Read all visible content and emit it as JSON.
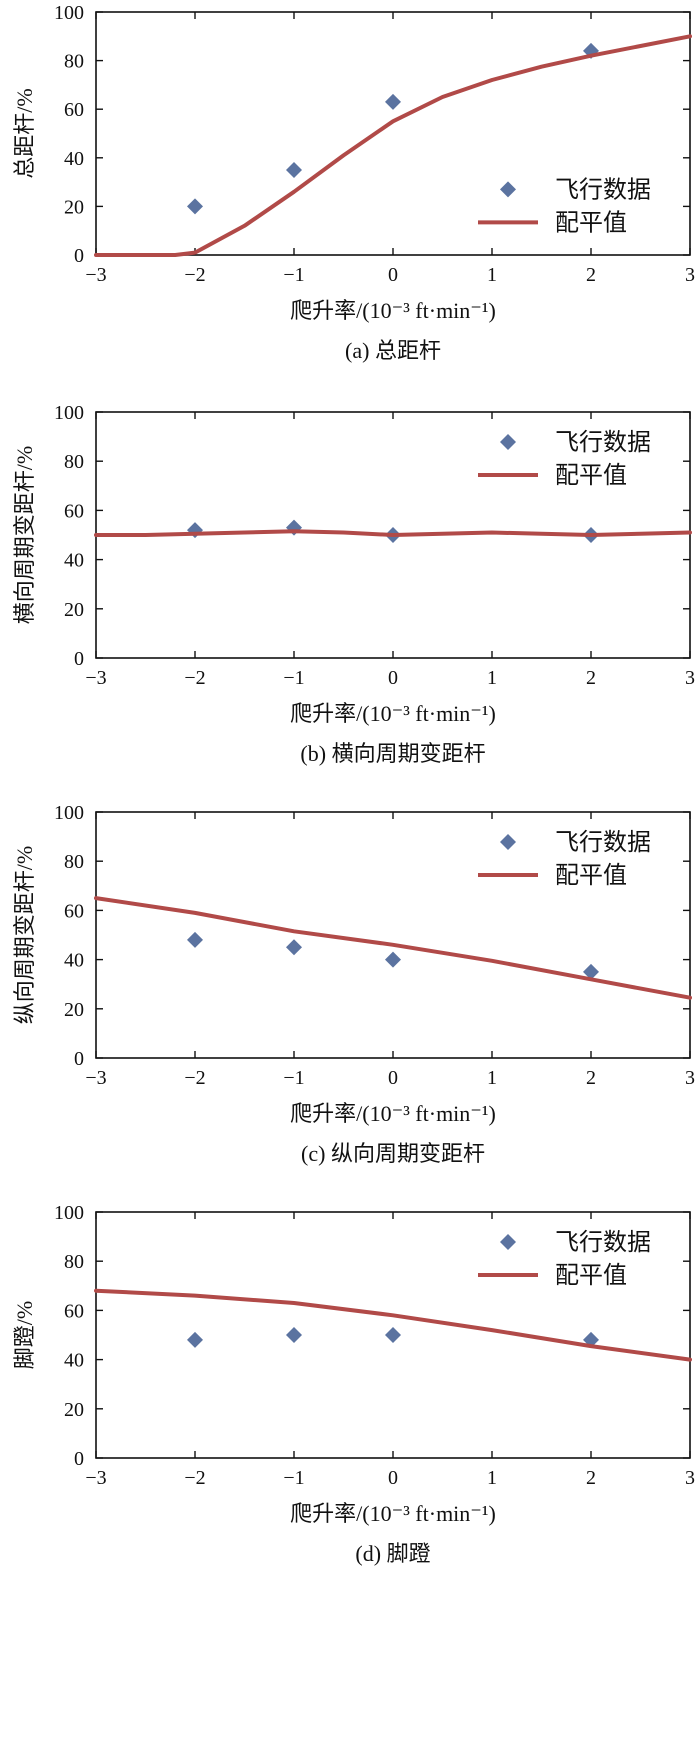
{
  "colors": {
    "flight": "#5b73a0",
    "fit": "#b14a48"
  },
  "chart_data": [
    {
      "type": "scatter",
      "caption": "(a) 总距杆",
      "xlabel": "爬升率/(10⁻³ ft·min⁻¹)",
      "ylabel": "总距杆/%",
      "xlim": [
        -3,
        3
      ],
      "ylim": [
        0,
        100
      ],
      "xticks": [
        "−3",
        "−2",
        "−1",
        "0",
        "1",
        "2",
        "3"
      ],
      "yticks": [
        "0",
        "20",
        "40",
        "60",
        "80",
        "100"
      ],
      "legend_position": "middle-right",
      "series": [
        {
          "name": "飞行数据",
          "kind": "scatter",
          "x": [
            -2,
            -1,
            0,
            2
          ],
          "y": [
            20,
            35,
            63,
            84
          ]
        },
        {
          "name": "配平值",
          "kind": "line",
          "x": [
            -3,
            -2.2,
            -2,
            -1.5,
            -1,
            -0.5,
            0,
            0.5,
            1,
            1.5,
            2,
            2.5,
            3
          ],
          "y": [
            0,
            0,
            1,
            12,
            26,
            41,
            55,
            65,
            72,
            77.5,
            82,
            86,
            90
          ]
        }
      ]
    },
    {
      "type": "scatter",
      "caption": "(b) 横向周期变距杆",
      "xlabel": "爬升率/(10⁻³ ft·min⁻¹)",
      "ylabel": "横向周期变距杆/%",
      "xlim": [
        -3,
        3
      ],
      "ylim": [
        0,
        100
      ],
      "xticks": [
        "−3",
        "−2",
        "−1",
        "0",
        "1",
        "2",
        "3"
      ],
      "yticks": [
        "0",
        "20",
        "40",
        "60",
        "80",
        "100"
      ],
      "legend_position": "top-right",
      "series": [
        {
          "name": "飞行数据",
          "kind": "scatter",
          "x": [
            -2,
            -1,
            0,
            2
          ],
          "y": [
            52,
            53,
            50,
            50
          ]
        },
        {
          "name": "配平值",
          "kind": "line",
          "x": [
            -3,
            -2.5,
            -2,
            -1.5,
            -1,
            -0.5,
            0,
            0.5,
            1,
            1.5,
            2,
            2.5,
            3
          ],
          "y": [
            50,
            50,
            50.5,
            51,
            51.5,
            51,
            50,
            50.5,
            51,
            50.5,
            50,
            50.5,
            51
          ]
        }
      ]
    },
    {
      "type": "scatter",
      "caption": "(c) 纵向周期变距杆",
      "xlabel": "爬升率/(10⁻³ ft·min⁻¹)",
      "ylabel": "纵向周期变距杆/%",
      "xlim": [
        -3,
        3
      ],
      "ylim": [
        0,
        100
      ],
      "xticks": [
        "−3",
        "−2",
        "−1",
        "0",
        "1",
        "2",
        "3"
      ],
      "yticks": [
        "0",
        "20",
        "40",
        "60",
        "80",
        "100"
      ],
      "legend_position": "top-right",
      "series": [
        {
          "name": "飞行数据",
          "kind": "scatter",
          "x": [
            -2,
            -1,
            0,
            2
          ],
          "y": [
            48,
            45,
            40,
            35
          ]
        },
        {
          "name": "配平值",
          "kind": "line",
          "x": [
            -3,
            -2,
            -1,
            0,
            1,
            2,
            3
          ],
          "y": [
            65,
            59,
            51.5,
            46,
            39.5,
            32,
            24.5
          ]
        }
      ]
    },
    {
      "type": "scatter",
      "caption": "(d) 脚蹬",
      "xlabel": "爬升率/(10⁻³ ft·min⁻¹)",
      "ylabel": "脚蹬/%",
      "xlim": [
        -3,
        3
      ],
      "ylim": [
        0,
        100
      ],
      "xticks": [
        "−3",
        "−2",
        "−1",
        "0",
        "1",
        "2",
        "3"
      ],
      "yticks": [
        "0",
        "20",
        "40",
        "60",
        "80",
        "100"
      ],
      "legend_position": "top-right",
      "series": [
        {
          "name": "飞行数据",
          "kind": "scatter",
          "x": [
            -2,
            -1,
            0,
            2
          ],
          "y": [
            48,
            50,
            50,
            48
          ]
        },
        {
          "name": "配平值",
          "kind": "line",
          "x": [
            -3,
            -2,
            -1,
            0,
            1,
            2,
            3
          ],
          "y": [
            68,
            66,
            63,
            58,
            52,
            45.5,
            40
          ]
        }
      ]
    }
  ]
}
